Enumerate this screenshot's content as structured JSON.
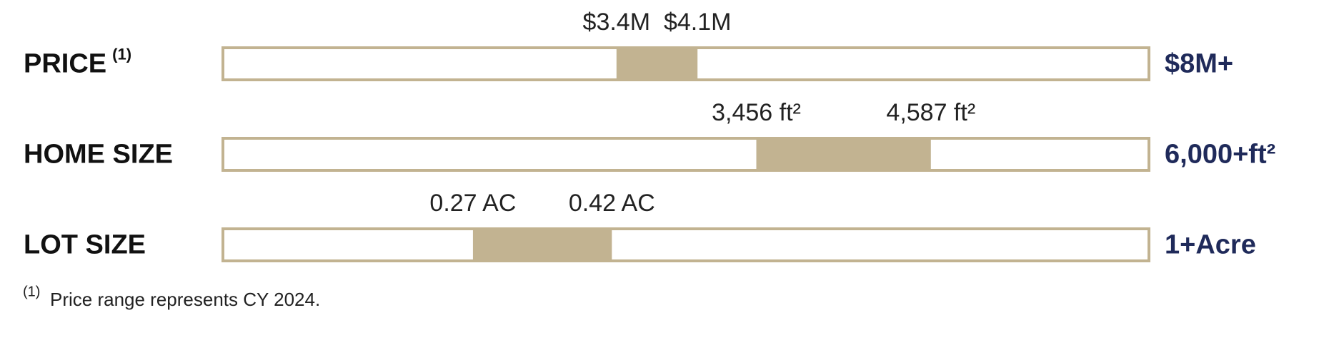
{
  "chart_data": [
    {
      "type": "range",
      "title": "PRICE",
      "title_note": "(1)",
      "values": [
        3400000,
        4100000
      ],
      "value_labels": [
        "$3.4M",
        "$4.1M"
      ],
      "xlim": [
        0,
        8000000
      ],
      "xticks": [
        {
          "value": 8000000,
          "label": "$8M+"
        }
      ],
      "color": "#c2b391"
    },
    {
      "type": "range",
      "title": "HOME SIZE",
      "values": [
        3456,
        4587
      ],
      "value_labels": [
        "3,456 ft²",
        "4,587 ft²"
      ],
      "xlim": [
        0,
        6000
      ],
      "xticks": [
        {
          "value": 6000,
          "label": "6,000+ft²"
        }
      ],
      "color": "#c2b391"
    },
    {
      "type": "range",
      "title": "LOT SIZE",
      "values": [
        0.27,
        0.42
      ],
      "value_labels": [
        "0.27 AC",
        "0.42 AC"
      ],
      "xlim": [
        0,
        1
      ],
      "xticks": [
        {
          "value": 1,
          "label": "1+Acre"
        }
      ],
      "color": "#c2b391"
    }
  ],
  "footnote": {
    "marker": "(1)",
    "text": "Price range represents CY 2024."
  }
}
